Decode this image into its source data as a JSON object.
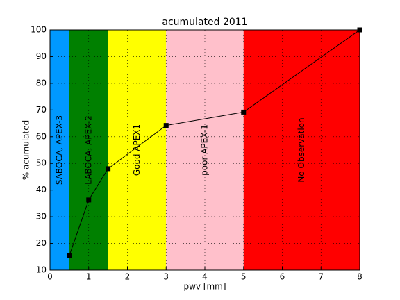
{
  "chart_data": {
    "type": "line",
    "title": "acumulated 2011",
    "xlabel": "pwv [mm]",
    "ylabel": "% acumulated",
    "x": [
      0.5,
      1,
      1.5,
      3,
      5,
      8
    ],
    "values": [
      15.5,
      36.3,
      48,
      64.2,
      69.2,
      100
    ],
    "color": "#000000",
    "xlim": [
      0,
      8
    ],
    "ylim": [
      10,
      100
    ],
    "xticks": [
      0,
      1,
      2,
      3,
      4,
      5,
      6,
      7,
      8
    ],
    "yticks": [
      10,
      20,
      30,
      40,
      50,
      60,
      70,
      80,
      90,
      100
    ],
    "grid": true,
    "bands": [
      {
        "from": 0,
        "to": 0.5,
        "color": "#0099ff",
        "label": "SABOCA, APEX-3"
      },
      {
        "from": 0.5,
        "to": 1.5,
        "color": "#008000",
        "label": "LABOCA, APEX-2"
      },
      {
        "from": 1.5,
        "to": 3,
        "color": "#ffff00",
        "label": "Good  APEX1"
      },
      {
        "from": 3,
        "to": 5,
        "color": "#ffc0cb",
        "label": "poor  APEX-1"
      },
      {
        "from": 5,
        "to": 8,
        "color": "#ff0000",
        "label": "No Observation"
      }
    ]
  }
}
